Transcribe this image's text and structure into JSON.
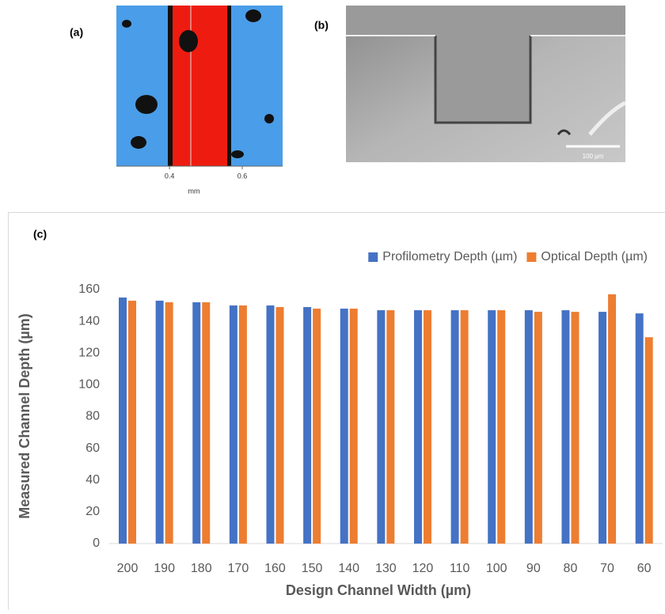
{
  "panel_a": {
    "label": "(a)",
    "xlim": [
      0.254,
      0.711
    ],
    "xticks": [
      0.4,
      0.6
    ],
    "xlabel": "mm"
  },
  "panel_b": {
    "label": "(b)",
    "scale_bar": "100 µm"
  },
  "chart_data": {
    "type": "bar",
    "panel_label": "(c)",
    "x_label": "Design Channel Width (µm)",
    "y_label": "Measured Channel Depth  (µm)",
    "categories": [
      "200",
      "190",
      "180",
      "170",
      "160",
      "150",
      "140",
      "130",
      "120",
      "110",
      "100",
      "90",
      "80",
      "70",
      "60"
    ],
    "series": [
      {
        "name": "Profilometry Depth  (µm)",
        "color": "#4472c4",
        "values": [
          155,
          153,
          152,
          150,
          150,
          149,
          148,
          147,
          147,
          147,
          147,
          147,
          147,
          146,
          145
        ]
      },
      {
        "name": "Optical Depth (µm)",
        "color": "#ed7d31",
        "values": [
          153,
          152,
          152,
          150,
          149,
          148,
          148,
          147,
          147,
          147,
          147,
          146,
          146,
          157,
          130
        ]
      }
    ],
    "ylim": [
      0,
      160
    ],
    "yticks": [
      0,
      20,
      40,
      60,
      80,
      100,
      120,
      140,
      160
    ],
    "grid": false,
    "legend": "top-right"
  }
}
